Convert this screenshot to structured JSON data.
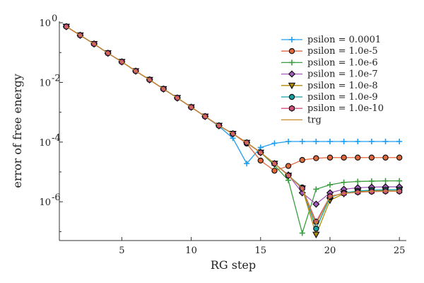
{
  "chart_data": {
    "type": "line",
    "xlabel": "RG step",
    "ylabel": "error of free energy",
    "xlim": [
      0.5,
      25.5
    ],
    "ylim_log10": [
      -7.3,
      0.05
    ],
    "y_scale": "log",
    "grid": false,
    "legend_position": "top-right",
    "x_ticks": [
      5,
      10,
      15,
      20,
      25
    ],
    "y_ticks": [
      {
        "value": -6,
        "label": "10",
        "exp": "-6"
      },
      {
        "value": -4,
        "label": "10",
        "exp": "-4"
      },
      {
        "value": -2,
        "label": "10",
        "exp": "-2"
      },
      {
        "value": 0,
        "label": "10",
        "exp": "0"
      }
    ],
    "x": [
      1,
      2,
      3,
      4,
      5,
      6,
      7,
      8,
      9,
      10,
      11,
      12,
      13,
      14,
      15,
      16,
      17,
      18,
      19,
      20,
      21,
      22,
      23,
      24,
      25
    ],
    "series": [
      {
        "name": "psilon = 0.0001",
        "color": "#1f9ef0",
        "marker": "plus",
        "log10_values": [
          -0.13,
          -0.42,
          -0.71,
          -1.02,
          -1.31,
          -1.62,
          -1.91,
          -2.22,
          -2.52,
          -2.83,
          -3.14,
          -3.47,
          -3.87,
          -4.72,
          -4.18,
          -4.04,
          -3.98,
          -3.98,
          -3.98,
          -3.98,
          -3.98,
          -3.98,
          -3.98,
          -3.98,
          -3.98
        ]
      },
      {
        "name": "psilon = 1.0e-5",
        "color": "#e2673a",
        "marker": "circle",
        "log10_values": [
          -0.13,
          -0.42,
          -0.71,
          -1.02,
          -1.31,
          -1.62,
          -1.91,
          -2.22,
          -2.52,
          -2.83,
          -3.14,
          -3.45,
          -3.72,
          -4.05,
          -4.62,
          -4.96,
          -4.8,
          -4.6,
          -4.54,
          -4.52,
          -4.52,
          -4.52,
          -4.52,
          -4.52,
          -4.52
        ]
      },
      {
        "name": "psilon = 1.0e-6",
        "color": "#3a9e3f",
        "marker": "plus",
        "log10_values": [
          -0.13,
          -0.42,
          -0.71,
          -1.02,
          -1.31,
          -1.62,
          -1.91,
          -2.22,
          -2.52,
          -2.83,
          -3.14,
          -3.45,
          -3.72,
          -4.02,
          -4.35,
          -4.78,
          -5.28,
          -7.05,
          -5.58,
          -5.43,
          -5.35,
          -5.32,
          -5.31,
          -5.3,
          -5.3
        ]
      },
      {
        "name": "psilon = 1.0e-7",
        "color": "#a45bbd",
        "marker": "diamond",
        "log10_values": [
          -0.13,
          -0.42,
          -0.71,
          -1.02,
          -1.31,
          -1.62,
          -1.91,
          -2.22,
          -2.52,
          -2.83,
          -3.14,
          -3.45,
          -3.72,
          -4.02,
          -4.35,
          -4.72,
          -5.1,
          -5.7,
          -6.08,
          -5.7,
          -5.58,
          -5.53,
          -5.51,
          -5.5,
          -5.5
        ]
      },
      {
        "name": "psilon = 1.0e-8",
        "color": "#b08a00",
        "marker": "triangle-down",
        "log10_values": [
          -0.13,
          -0.42,
          -0.71,
          -1.02,
          -1.31,
          -1.62,
          -1.91,
          -2.22,
          -2.52,
          -2.83,
          -3.14,
          -3.45,
          -3.72,
          -4.02,
          -4.35,
          -4.72,
          -5.12,
          -5.55,
          -7.1,
          -5.95,
          -5.73,
          -5.65,
          -5.62,
          -5.61,
          -5.6
        ]
      },
      {
        "name": "psilon = 1.0e-9",
        "color": "#11a3a3",
        "marker": "circle",
        "log10_values": [
          -0.13,
          -0.42,
          -0.71,
          -1.02,
          -1.31,
          -1.62,
          -1.91,
          -2.22,
          -2.52,
          -2.83,
          -3.14,
          -3.45,
          -3.72,
          -4.02,
          -4.35,
          -4.72,
          -5.12,
          -5.52,
          -6.9,
          -5.85,
          -5.7,
          -5.64,
          -5.61,
          -5.6,
          -5.6
        ]
      },
      {
        "name": "psilon = 1.0e-10",
        "color": "#d4507f",
        "marker": "hexagon",
        "log10_values": [
          -0.13,
          -0.42,
          -0.71,
          -1.02,
          -1.31,
          -1.62,
          -1.91,
          -2.22,
          -2.52,
          -2.83,
          -3.14,
          -3.45,
          -3.72,
          -4.02,
          -4.35,
          -4.72,
          -5.12,
          -5.55,
          -6.67,
          -5.82,
          -5.72,
          -5.68,
          -5.66,
          -5.65,
          -5.65
        ]
      },
      {
        "name": "trg",
        "color": "#c8892c",
        "marker": "none",
        "log10_values": [
          -0.13,
          -0.42,
          -0.71,
          -1.02,
          -1.31,
          -1.62,
          -1.91,
          -2.22,
          -2.52,
          -2.83,
          -3.14,
          -3.45,
          -3.72,
          -4.02,
          -4.35,
          -4.72,
          -5.12,
          -5.55,
          -6.75,
          -5.82,
          -5.72,
          -5.67,
          -5.65,
          -5.64,
          -5.64
        ]
      }
    ]
  }
}
